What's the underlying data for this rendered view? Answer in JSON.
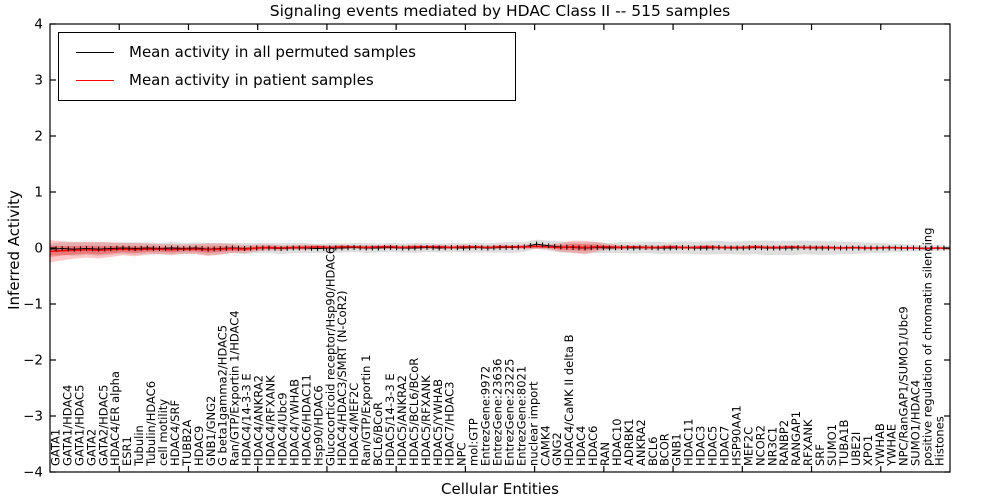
{
  "chart_data": {
    "type": "line",
    "title": "Signaling events mediated by HDAC Class II -- 515 samples",
    "xlabel": "Cellular Entities",
    "ylabel": "Inferred Activity",
    "ylim": [
      -4,
      4
    ],
    "yticks": [
      -4,
      -3,
      -2,
      -1,
      0,
      1,
      2,
      3,
      4
    ],
    "grid": false,
    "legend_position": "upper left",
    "legend": [
      {
        "label": "Mean activity in all permuted samples",
        "color": "#000000"
      },
      {
        "label": "Mean activity in patient samples",
        "color": "#ff0000"
      }
    ],
    "categories": [
      "GATA1",
      "GATA1/HDAC4",
      "GATA1/HDAC5",
      "GATA2",
      "GATA2/HDAC5",
      "HDAC4/ER alpha",
      "ESR1",
      "Tubulin",
      "Tubulin/HDAC6",
      "cell motility",
      "HDAC4/SRF",
      "TUBB2A",
      "HDAC9",
      "GNB1/GNG2",
      "G beta1gamma2/HDAC5",
      "Ran/GTP/Exportin 1/HDAC4",
      "HDAC4/14-3-3 E",
      "HDAC4/ANKRA2",
      "HDAC4/RFXANK",
      "HDAC4/Ubc9",
      "HDAC4/YWHAB",
      "HDAC6/HDAC11",
      "Hsp90/HDAC6",
      "Glucocorticoid receptor/Hsp90/HDAC6",
      "HDAC4/HDAC3/SMRT (N-CoR2)",
      "HDAC4/MEF2C",
      "Ran/GTP/Exportin 1",
      "BCL6/BCoR",
      "HDAC5/14-3-3 E",
      "HDAC5/ANKRA2",
      "HDAC5/BCL6/BCoR",
      "HDAC5/RFXANK",
      "HDAC5/YWHAB",
      "HDAC7/HDAC3",
      "NPC",
      "mol:GTP",
      "EntrezGene:9972",
      "EntrezGene:23636",
      "EntrezGene:23225",
      "EntrezGene:8021",
      "nuclear import",
      "CAMK4",
      "GNG2",
      "HDAC4/CaMK II delta B",
      "HDAC4",
      "HDAC6",
      "RAN",
      "HDAC10",
      "ADRBK1",
      "ANKRA2",
      "BCL6",
      "BCOR",
      "GNB1",
      "HDAC11",
      "HDAC3",
      "HDAC5",
      "HDAC7",
      "HSP90AA1",
      "MEF2C",
      "NCOR2",
      "NR3C1",
      "RANBP2",
      "RANGAP1",
      "RFXANK",
      "SRF",
      "SUMO1",
      "TUBA1B",
      "UBE2I",
      "XPO1",
      "YWHAB",
      "YWHAE",
      "NPC/RanGAP1/SUMO1/Ubc9",
      "SUMO1/HDAC4",
      "positive regulation of chromatin silencing",
      "Histones"
    ],
    "series": [
      {
        "name": "Mean activity in all permuted samples",
        "color": "#000000",
        "values": [
          -0.02,
          -0.01,
          -0.02,
          -0.01,
          -0.02,
          -0.01,
          0,
          -0.01,
          0,
          -0.01,
          0,
          -0.01,
          0,
          -0.02,
          -0.01,
          0,
          -0.01,
          0,
          0,
          -0.01,
          0,
          0,
          -0.01,
          0,
          0,
          0.01,
          0,
          0,
          0.01,
          0,
          0,
          0.01,
          0,
          0.01,
          0,
          0.01,
          0,
          0.01,
          0.01,
          0.02,
          0.07,
          0.04,
          0.02,
          0.01,
          0,
          0.01,
          0,
          0.01,
          0,
          0.01,
          0,
          0,
          0.01,
          0,
          0,
          0.01,
          0,
          0,
          0.01,
          0,
          0,
          0,
          0.01,
          0,
          0,
          0,
          0,
          0,
          0,
          0,
          0,
          0,
          0,
          0,
          0
        ]
      },
      {
        "name": "Mean activity in patient samples",
        "color": "#ff0000",
        "values": [
          -0.06,
          -0.05,
          -0.04,
          -0.03,
          -0.04,
          -0.03,
          -0.02,
          -0.03,
          -0.02,
          -0.02,
          -0.03,
          -0.02,
          -0.02,
          -0.03,
          -0.02,
          -0.01,
          -0.02,
          0,
          0.01,
          0,
          0.01,
          0.01,
          0.02,
          0.01,
          0.02,
          0.02,
          0.01,
          0.02,
          0.02,
          0.01,
          0.02,
          0.02,
          0.02,
          0.01,
          0.02,
          0.02,
          0.01,
          0.02,
          0.02,
          0.02,
          0.03,
          0.02,
          0.01,
          0.02,
          0.01,
          0.02,
          0.02,
          0.01,
          0.02,
          0.01,
          0.01,
          0.02,
          0.01,
          0.01,
          0.02,
          0.01,
          0.01,
          0.01,
          0.02,
          0.01,
          0.01,
          0.02,
          0.01,
          0.01,
          0.01,
          0,
          0.01,
          0,
          0,
          0.01,
          0,
          0,
          -0.01,
          0,
          -0.01
        ]
      }
    ],
    "bands": [
      {
        "name": "permuted-range-band",
        "series": 0,
        "color": "#999999",
        "opacity": 0.32,
        "half_widths": [
          0.1,
          0.11,
          0.12,
          0.11,
          0.12,
          0.11,
          0.1,
          0.11,
          0.1,
          0.1,
          0.11,
          0.1,
          0.1,
          0.11,
          0.1,
          0.09,
          0.1,
          0.09,
          0.09,
          0.1,
          0.09,
          0.09,
          0.08,
          0.09,
          0.08,
          0.08,
          0.09,
          0.08,
          0.08,
          0.08,
          0.09,
          0.08,
          0.08,
          0.08,
          0.08,
          0.09,
          0.08,
          0.09,
          0.1,
          0.09,
          0.08,
          0.09,
          0.1,
          0.09,
          0.1,
          0.1,
          0.09,
          0.1,
          0.1,
          0.1,
          0.11,
          0.1,
          0.11,
          0.11,
          0.12,
          0.12,
          0.11,
          0.12,
          0.12,
          0.13,
          0.12,
          0.13,
          0.12,
          0.12,
          0.12,
          0.11,
          0.11,
          0.1,
          0.09,
          0.08,
          0.07,
          0.06,
          0.05,
          0.05,
          0.04
        ]
      },
      {
        "name": "patient-range-band-outer",
        "series": 1,
        "color": "#ff0000",
        "opacity": 0.22,
        "half_widths": [
          0.2,
          0.17,
          0.15,
          0.14,
          0.15,
          0.13,
          0.11,
          0.12,
          0.1,
          0.09,
          0.1,
          0.08,
          0.09,
          0.11,
          0.1,
          0.08,
          0.07,
          0.06,
          0.05,
          0.05,
          0.04,
          0.05,
          0.04,
          0.04,
          0.04,
          0.03,
          0.04,
          0.03,
          0.04,
          0.03,
          0.04,
          0.03,
          0.04,
          0.03,
          0.04,
          0.03,
          0.03,
          0.04,
          0.03,
          0.04,
          0.05,
          0.04,
          0.08,
          0.11,
          0.12,
          0.08,
          0.05,
          0.04,
          0.03,
          0.04,
          0.03,
          0.04,
          0.03,
          0.03,
          0.04,
          0.03,
          0.03,
          0.03,
          0.04,
          0.03,
          0.03,
          0.03,
          0.03,
          0.03,
          0.03,
          0.03,
          0.02,
          0.03,
          0.02,
          0.02,
          0.02,
          0.02,
          0.02,
          0.02,
          0.02
        ]
      },
      {
        "name": "patient-range-band-inner",
        "series": 1,
        "color": "#ff0000",
        "opacity": 0.3,
        "half_widths": [
          0.1,
          0.085,
          0.075,
          0.07,
          0.075,
          0.065,
          0.055,
          0.06,
          0.05,
          0.045,
          0.05,
          0.04,
          0.045,
          0.055,
          0.05,
          0.04,
          0.035,
          0.03,
          0.025,
          0.025,
          0.02,
          0.025,
          0.02,
          0.02,
          0.02,
          0.015,
          0.02,
          0.015,
          0.02,
          0.015,
          0.02,
          0.015,
          0.02,
          0.015,
          0.02,
          0.015,
          0.015,
          0.02,
          0.015,
          0.02,
          0.025,
          0.02,
          0.04,
          0.055,
          0.06,
          0.04,
          0.025,
          0.02,
          0.015,
          0.02,
          0.015,
          0.02,
          0.015,
          0.015,
          0.02,
          0.015,
          0.015,
          0.015,
          0.02,
          0.015,
          0.015,
          0.015,
          0.015,
          0.015,
          0.015,
          0.015,
          0.01,
          0.015,
          0.01,
          0.01,
          0.01,
          0.01,
          0.01,
          0.01,
          0.01
        ]
      }
    ]
  }
}
